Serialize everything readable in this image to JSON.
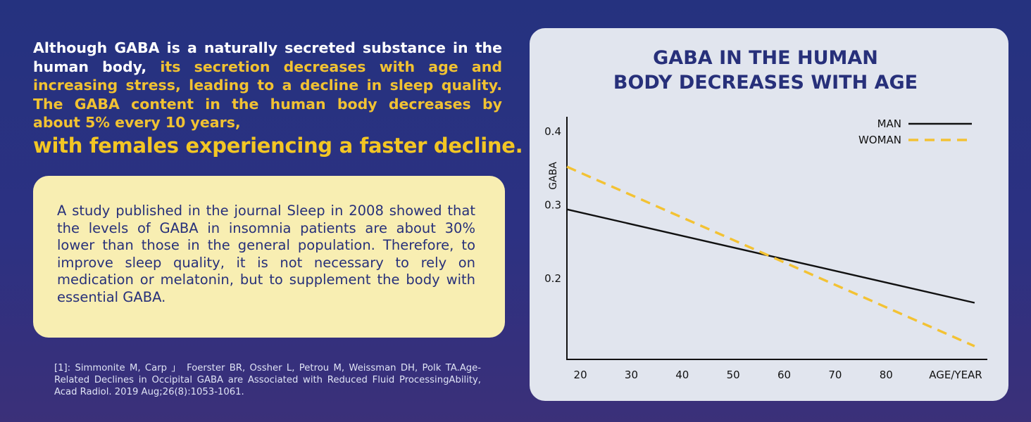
{
  "intro": {
    "white_part": "Although GABA is a naturally secreted substance in the human body,",
    "yellow_part": "its secretion decreases with age and increasing stress, leading to a decline in sleep quality. The GABA content in the human body decreases by about 5% every 10 years,"
  },
  "headline": "with females experiencing a faster decline.",
  "study": {
    "text": "A study published in the journal Sleep in 2008 showed that the levels of GABA in insomnia patients are about 30% lower than those in the general population. Therefore, to improve sleep quality, it is not necessary to rely on medication or melatonin, but to supplement the body with essential GABA."
  },
  "reference": "[1]: Simmonite M, Carp 」 Foerster BR, Ossher L, Petrou M, Weissman DH, Polk TA.Age-Related Declines in Occipital GABA are Associated with Reduced Fluid ProcessingAbility, Acad Radiol. 2019 Aug;26(8):1053-1061.",
  "colors": {
    "background": "#2a3180",
    "yellow": "#f3c624",
    "panel": "#e1e5ee",
    "title_navy": "#27307a",
    "man_line": "#111111",
    "woman_line": "#f3c233"
  },
  "chart_data": {
    "type": "line",
    "title_lines": [
      "GABA IN THE HUMAN",
      "BODY DECREASES WITH AGE"
    ],
    "xlabel": "AGE/YEAR",
    "ylabel": "GABA",
    "x_ticks": [
      "20",
      "30",
      "40",
      "50",
      "60",
      "70",
      "80"
    ],
    "y_ticks": [
      "0.4",
      "0.3",
      "0.2"
    ],
    "xlim": [
      17.5,
      100
    ],
    "ylim": [
      0.09,
      0.42
    ],
    "grid": false,
    "legend_position": "top-right",
    "series": [
      {
        "name": "MAN",
        "style": "solid",
        "x": [
          17.5,
          97.5
        ],
        "y": [
          0.294,
          0.167
        ]
      },
      {
        "name": "WOMAN",
        "style": "dashed",
        "x": [
          17.5,
          97.5
        ],
        "y": [
          0.352,
          0.108
        ]
      }
    ]
  }
}
